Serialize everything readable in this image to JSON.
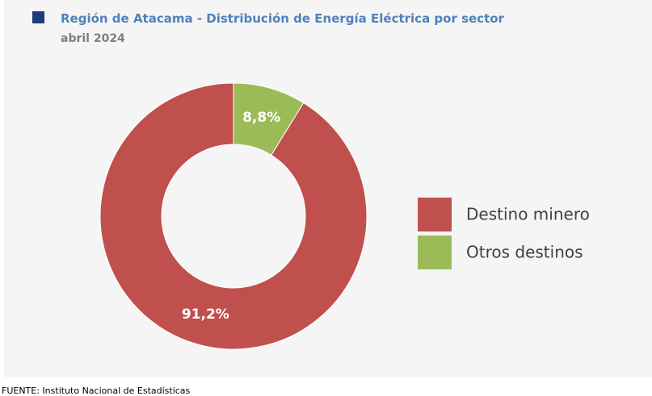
{
  "chart_data": {
    "type": "pie",
    "title": "Región de Atacama - Distribución de Energía Eléctrica por sector",
    "subtitle": "abril 2024",
    "source": "FUENTE: Instituto Nacional de Estadísticas",
    "categories": [
      "Destino minero",
      "Otros destinos"
    ],
    "values": [
      91.2,
      8.8
    ],
    "value_labels": [
      "91,2%",
      "8,8%"
    ],
    "colors": [
      "#c0504d",
      "#9bbb59"
    ],
    "donut": true,
    "legend": "right"
  }
}
